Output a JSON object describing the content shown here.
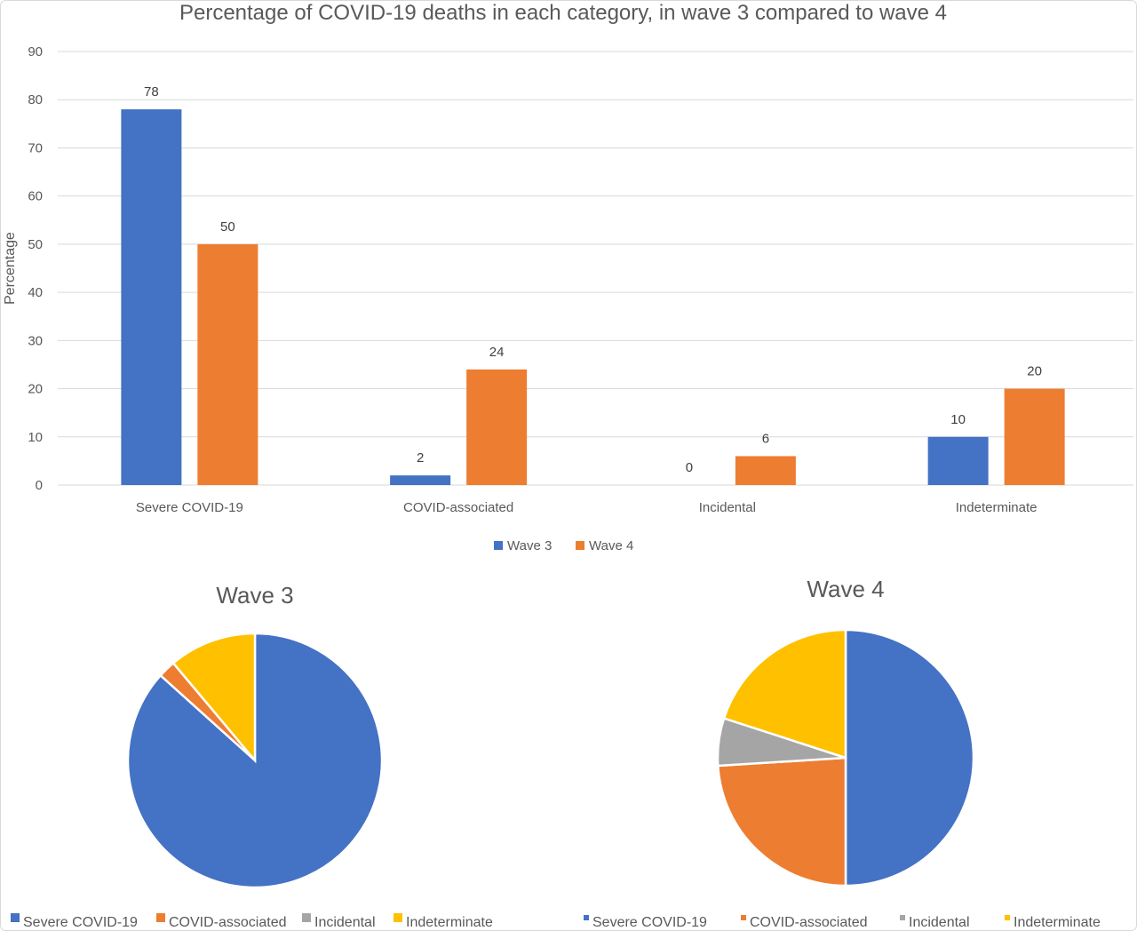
{
  "colors": {
    "Severe COVID-19": "#4472C4",
    "COVID-associated": "#ED7D31",
    "Incidental": "#A5A5A5",
    "Indeterminate": "#FFC000",
    "Wave 3": "#4472C4",
    "Wave 4": "#ED7D31"
  },
  "chart_data": [
    {
      "type": "bar",
      "title": "Percentage of COVID-19 deaths in each category, in wave 3 compared to wave 4",
      "xlabel": "",
      "ylabel": "Percentage",
      "ylim": [
        0,
        90
      ],
      "yticks": [
        0,
        10,
        20,
        30,
        40,
        50,
        60,
        70,
        80,
        90
      ],
      "grid": true,
      "legend": "bottom",
      "categories": [
        "Severe COVID-19",
        "COVID-associated",
        "Incidental",
        "Indeterminate"
      ],
      "series": [
        {
          "name": "Wave 3",
          "values": [
            78,
            2,
            0,
            10
          ]
        },
        {
          "name": "Wave 4",
          "values": [
            50,
            24,
            6,
            20
          ]
        }
      ]
    },
    {
      "type": "pie",
      "title": "Wave 3",
      "legend": "bottom",
      "labels": [
        "Severe COVID-19",
        "COVID-associated",
        "Incidental",
        "Indeterminate"
      ],
      "values": [
        78,
        2,
        0,
        10
      ]
    },
    {
      "type": "pie",
      "title": "Wave 4",
      "legend": "bottom",
      "labels": [
        "Severe COVID-19",
        "COVID-associated",
        "Incidental",
        "Indeterminate"
      ],
      "values": [
        50,
        24,
        6,
        20
      ]
    }
  ]
}
